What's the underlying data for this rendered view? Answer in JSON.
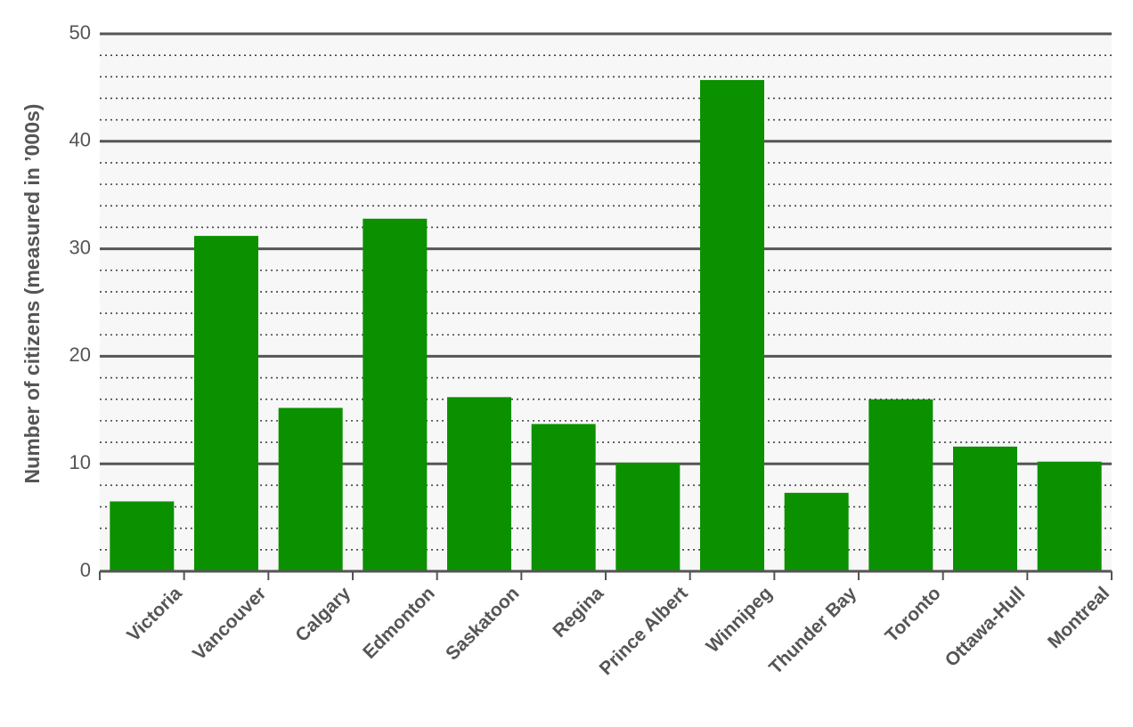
{
  "chart_data": {
    "type": "bar",
    "y_label": "Number of citizens (measured in ’000s)",
    "categories": [
      "Victoria",
      "Vancouver",
      "Calgary",
      "Edmonton",
      "Saskatoon",
      "Regina",
      "Prince Albert",
      "Winnipeg",
      "Thunder Bay",
      "Toronto",
      "Ottawa-Hull",
      "Montreal"
    ],
    "values": [
      6.5,
      31.2,
      15.2,
      32.8,
      16.2,
      13.7,
      10.1,
      45.7,
      7.3,
      16.0,
      11.6,
      10.2
    ],
    "color": "#0b9100",
    "ylim": [
      0,
      50
    ],
    "yticks": [
      0,
      10,
      20,
      30,
      40,
      50
    ],
    "yminorticks": [
      2,
      4,
      6,
      8,
      12,
      14,
      16,
      18,
      22,
      24,
      26,
      28,
      32,
      34,
      36,
      38,
      42,
      44,
      46,
      48
    ],
    "grid": true
  }
}
